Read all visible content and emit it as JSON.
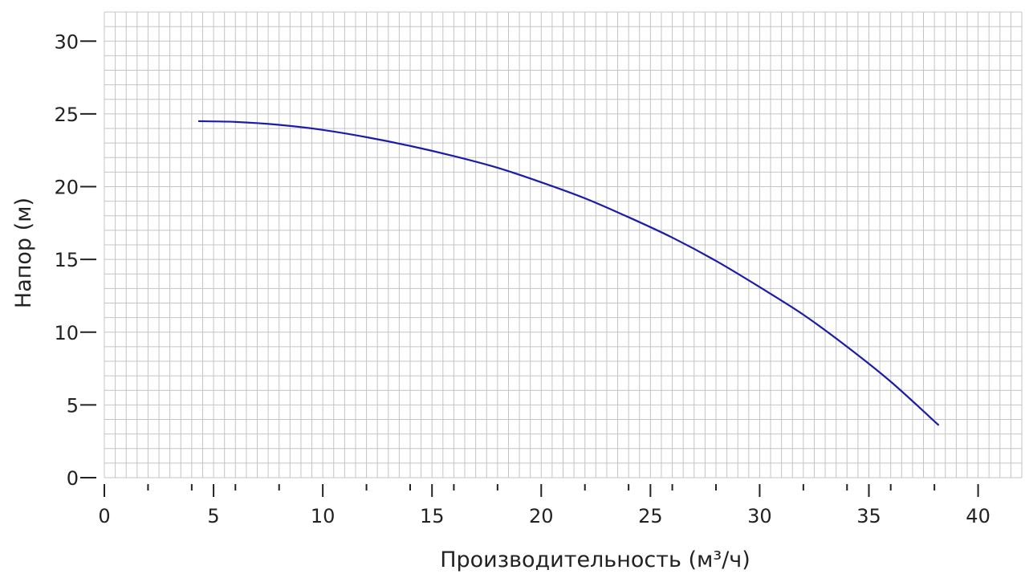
{
  "chart_data": {
    "type": "line",
    "title": "",
    "xlabel": "Производительность (м³/ч)",
    "ylabel": "Напор (м)",
    "xlim": [
      0,
      42
    ],
    "ylim": [
      0,
      32
    ],
    "grid": true,
    "minor_grid_x_step": 0.5,
    "minor_grid_y_step": 1,
    "x_major_ticks": [
      0,
      5,
      10,
      15,
      20,
      25,
      30,
      35,
      40
    ],
    "x_minor_ticks": [
      2,
      4,
      6,
      8,
      12,
      14,
      16,
      18,
      22,
      24,
      26,
      28,
      32,
      34,
      36,
      38
    ],
    "y_ticks": [
      0,
      5,
      10,
      15,
      20,
      25,
      30
    ],
    "line_color": "#1c1ca8",
    "grid_color": "#c4c4c4",
    "series": [
      {
        "x": [
          4.3,
          6,
          8,
          10,
          12,
          14,
          16,
          18,
          20,
          22,
          24,
          26,
          28,
          30,
          32,
          34,
          36,
          38.2
        ],
        "y": [
          24.5,
          24.45,
          24.25,
          23.9,
          23.4,
          22.8,
          22.1,
          21.3,
          20.3,
          19.2,
          17.9,
          16.5,
          14.9,
          13.1,
          11.2,
          9.0,
          6.6,
          3.6
        ]
      }
    ]
  }
}
